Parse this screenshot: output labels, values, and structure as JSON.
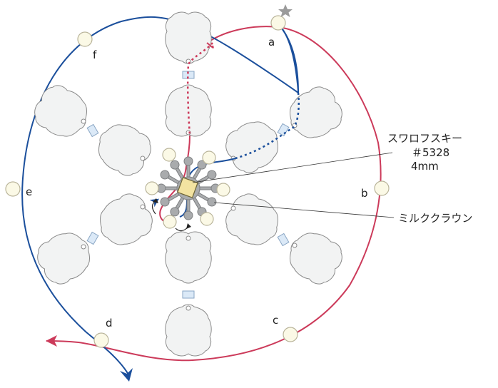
{
  "labels": {
    "a": "a",
    "b": "b",
    "c": "c",
    "d": "d",
    "e": "e",
    "f": "f"
  },
  "callouts": {
    "crystal_line1": "スワロフスキー",
    "crystal_line2": "＃5328",
    "crystal_line3": "4mm",
    "milk_crown": "ミルククラウン"
  },
  "icons": {
    "start": "star-icon"
  },
  "colors": {
    "blue_thread": "#1b4f9c",
    "red_thread": "#cc3a5a",
    "petal_fill": "#f2f3f3",
    "petal_stroke": "#8a8a8a",
    "bead_fill": "#fbf9e6",
    "bead_stroke": "#b9b49a",
    "spacer_fill": "#dbe9f7",
    "spacer_stroke": "#8aa6c4",
    "crown_fill": "#a9abad",
    "crystal_fill": "#f3e3a1",
    "star": "#9b9b9b"
  }
}
